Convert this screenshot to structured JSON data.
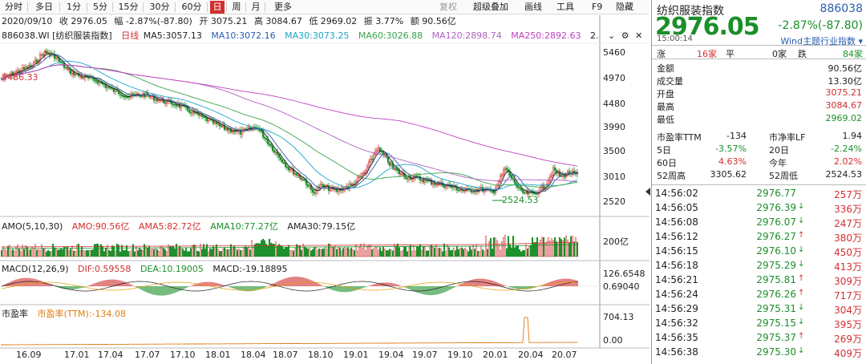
{
  "toolbar": {
    "tabs": [
      "分时",
      "多日",
      "1分",
      "5分",
      "15分",
      "30分",
      "60分",
      "日",
      "周",
      "月",
      "更多"
    ],
    "right": [
      "复权",
      "超级叠加",
      "画线",
      "工具",
      "F9",
      "隐藏"
    ]
  },
  "info": {
    "date": "2020/09/10",
    "close": "收 2976.05",
    "change": "幅 -2.87%(-87.80)",
    "open": "开 3075.21",
    "high": "高 3084.67",
    "low": "低 2969.02",
    "amplitude": "振 3.77%",
    "amount": "额 90.56亿"
  },
  "ma_line": {
    "code": "886038.WI [纺织服装指数]",
    "kline": "日线",
    "ma5": "MA5:3057.13",
    "ma10": "MA10:3072.16",
    "ma30": "MA30:3073.25",
    "ma60": "MA60:3026.88",
    "ma120": "MA120:2898.74",
    "ma250": "MA250:2892.63",
    "more": "2."
  },
  "colors": {
    "up": "#d32f2f",
    "down": "#1a8f2a",
    "ma5": "#222222",
    "ma10": "#2a5db0",
    "ma30": "#1aa5c8",
    "ma60": "#3aa24a",
    "ma120": "#b060c0",
    "ma250": "#c040c0"
  },
  "price_scale": [
    "5460",
    "4970",
    "4480",
    "3990",
    "3500",
    "3010",
    "2520"
  ],
  "annotations": {
    "high": "5486.33",
    "low": "2524.53"
  },
  "amo": {
    "label": "AMO(5,10,30)",
    "amo": "AMO:90.56亿",
    "ma5": "AMA5:82.72亿",
    "ma10": "AMA10:77.27亿",
    "ma30": "AMA30:79.15亿",
    "scale": "200亿"
  },
  "macd": {
    "label": "MACD(12,26,9)",
    "dif": "DIF:0.59558",
    "dea": "DEA:10.19005",
    "macd": "MACD:-19.18895",
    "scale_top": "126.6548",
    "scale_mid": "0.69040"
  },
  "pe": {
    "label": "市盈率",
    "value": "市盈率(TTM):-134.08",
    "scale_top": "704.13",
    "scale_bottom": "0.00"
  },
  "x_labels": [
    "16.09",
    "17.01",
    "17.04",
    "17.07",
    "17.10",
    "18.01",
    "18.04",
    "18.07",
    "18.10",
    "19.01",
    "19.04",
    "19.07",
    "19.10",
    "20.01",
    "20.04",
    "20.07"
  ],
  "quote": {
    "name": "纺织服装指数",
    "code": "886038",
    "price": "2976.05",
    "change": "-2.87%(-87.80)",
    "time": "15:00:14",
    "source": "Wind主题行业指数",
    "breadth": {
      "up_label": "涨",
      "up": "16家",
      "flat_label": "平",
      "flat": "0家",
      "down_label": "跌",
      "down": "84家"
    },
    "stats": [
      {
        "k": "金额",
        "v": "90.56亿"
      },
      {
        "k": "成交量",
        "v": "13.30亿"
      },
      {
        "k": "开盘",
        "v": "3075.21"
      },
      {
        "k": "最高",
        "v": "3084.67"
      },
      {
        "k": "最低",
        "v": "2969.02"
      }
    ],
    "stats2": [
      {
        "k1": "市盈率TTM",
        "v1": "-134",
        "k2": "市净率LF",
        "v2": "1.94"
      },
      {
        "k1": "5日",
        "v1": "-3.57%",
        "k2": "20日",
        "v2": "-2.24%"
      },
      {
        "k1": "60日",
        "v1": "4.63%",
        "k2": "今年",
        "v2": "2.02%"
      },
      {
        "k1": "52周高",
        "v1": "3305.62",
        "k2": "52周低",
        "v2": "2524.53"
      }
    ],
    "ticks": [
      {
        "t": "14:56:02",
        "p": "2976.77",
        "a": "",
        "v": "257万"
      },
      {
        "t": "14:56:05",
        "p": "2976.39",
        "a": "↓",
        "v": "336万"
      },
      {
        "t": "14:56:08",
        "p": "2976.07",
        "a": "↓",
        "v": "247万"
      },
      {
        "t": "14:56:12",
        "p": "2976.27",
        "a": "↑",
        "v": "380万"
      },
      {
        "t": "14:56:15",
        "p": "2976.10",
        "a": "↓",
        "v": "450万"
      },
      {
        "t": "14:56:18",
        "p": "2975.29",
        "a": "↓",
        "v": "413万"
      },
      {
        "t": "14:56:21",
        "p": "2975.81",
        "a": "↑",
        "v": "309万"
      },
      {
        "t": "14:56:24",
        "p": "2976.26",
        "a": "↑",
        "v": "717万"
      },
      {
        "t": "14:56:29",
        "p": "2975.31",
        "a": "↓",
        "v": "304万"
      },
      {
        "t": "14:56:32",
        "p": "2975.15",
        "a": "↓",
        "v": "395万"
      },
      {
        "t": "14:56:35",
        "p": "2975.37",
        "a": "↑",
        "v": "269万"
      },
      {
        "t": "14:56:38",
        "p": "2975.30",
        "a": "↓",
        "v": "409万"
      }
    ]
  }
}
